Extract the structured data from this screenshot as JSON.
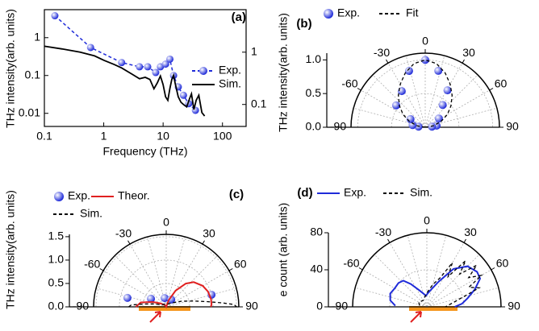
{
  "chart_data": [
    {
      "type": "line",
      "panel_label": "(a)",
      "xlabel": "Frequency (THz)",
      "ylabel": "THz intensity(arb. units)",
      "log_x": true,
      "log_y": true,
      "xlim": [
        0.1,
        250
      ],
      "xticks": [
        0.1,
        1,
        10,
        100
      ],
      "ylim": [
        0.0045,
        5.5
      ],
      "yticks": [
        0.01,
        0.1,
        1
      ],
      "yaxis_color": "#1f2bd9",
      "y2lim": [
        0.038,
        6.5
      ],
      "y2ticks": [
        0.1,
        1
      ],
      "series": [
        {
          "name": "Exp.",
          "color": "#1f2bd9",
          "marker": "circle",
          "dash": true,
          "x": [
            0.15,
            0.6,
            2,
            4,
            5.5,
            7.5,
            9,
            11,
            13,
            15,
            18,
            22,
            27,
            35
          ],
          "values": [
            3.8,
            0.55,
            0.22,
            0.17,
            0.17,
            0.12,
            0.17,
            0.2,
            0.27,
            0.1,
            0.05,
            0.03,
            0.018,
            0.012
          ]
        },
        {
          "name": "Sim.",
          "color": "#000000",
          "axis": "y2",
          "x": [
            0.1,
            0.2,
            0.4,
            0.7,
            1,
            1.5,
            2,
            3,
            4,
            5,
            6,
            7,
            8,
            9,
            10,
            11,
            12,
            13,
            14,
            15,
            16,
            18,
            20,
            22,
            25,
            28,
            30,
            33,
            36,
            40,
            45,
            50
          ],
          "values": [
            1.3,
            1.15,
            1.0,
            0.85,
            0.7,
            0.58,
            0.5,
            0.38,
            0.31,
            0.33,
            0.3,
            0.2,
            0.26,
            0.35,
            0.24,
            0.14,
            0.12,
            0.2,
            0.3,
            0.36,
            0.25,
            0.14,
            0.11,
            0.1,
            0.09,
            0.13,
            0.16,
            0.08,
            0.12,
            0.15,
            0.07,
            0.06
          ]
        }
      ]
    },
    {
      "type": "polar",
      "panel_label": "(b)",
      "ylabel": "THz intensity(arb. units)",
      "rlim": [
        0,
        1.1
      ],
      "rticks": [
        {
          "value": 0,
          "label": "0.0"
        },
        0.5,
        {
          "value": 1,
          "label": "1.0"
        }
      ],
      "thetaticks": [
        -90,
        -60,
        -30,
        0,
        30,
        60,
        90
      ],
      "series": [
        {
          "name": "Exp.",
          "color": "#1f2bd9",
          "marker": "circle",
          "x": [
            -85,
            -80,
            -61,
            -53,
            -33,
            -16,
            0,
            13,
            31,
            38,
            57,
            82,
            85
          ],
          "values": [
            0.1,
            0.19,
            0.25,
            0.54,
            0.64,
            0.87,
            1.0,
            0.86,
            0.64,
            0.42,
            0.24,
            0.17,
            0.1
          ]
        },
        {
          "name": "Fit",
          "color": "#000000",
          "dash": true,
          "x": [
            -90,
            -80,
            -70,
            -60,
            -50,
            -40,
            -30,
            -20,
            -10,
            0,
            10,
            20,
            30,
            40,
            50,
            60,
            70,
            80,
            90
          ],
          "values": [
            0,
            0.12,
            0.25,
            0.38,
            0.5,
            0.62,
            0.74,
            0.86,
            0.96,
            1.0,
            0.96,
            0.86,
            0.74,
            0.62,
            0.5,
            0.38,
            0.25,
            0.12,
            0
          ]
        }
      ]
    },
    {
      "type": "polar",
      "panel_label": "(c)",
      "ylabel": "THz intensity(arb. units)",
      "rlim": [
        0,
        1.55
      ],
      "rticks": [
        {
          "value": 0,
          "label": "0.0"
        },
        0.5,
        {
          "value": 1,
          "label": "1.0"
        },
        1.5
      ],
      "thetaticks": [
        -90,
        -60,
        -30,
        0,
        30,
        60,
        90
      ],
      "series": [
        {
          "name": "Exp.",
          "color": "#1f2bd9",
          "marker": "circle",
          "x": [
            -77,
            -62,
            -10,
            34,
            75
          ],
          "values": [
            0.85,
            0.37,
            0.19,
            0.19,
            1.0
          ]
        },
        {
          "name": "Theor.",
          "color": "#e02020",
          "x": [
            -90,
            -80,
            -70,
            -60,
            -45,
            -30,
            0,
            20,
            30,
            40,
            48,
            60,
            70,
            80,
            87,
            90
          ],
          "values": [
            0.65,
            0.55,
            0.3,
            0.15,
            0.06,
            0.03,
            0,
            0.15,
            0.4,
            0.65,
            0.79,
            0.9,
            0.95,
            0.97,
            0.97,
            0.95
          ]
        },
        {
          "name": "Sim.",
          "color": "#000000",
          "dash": true,
          "x": [
            -90,
            -87,
            -83,
            -78,
            -70,
            -50,
            0,
            50,
            70,
            78,
            83,
            86,
            88,
            90
          ],
          "values": [
            0.8,
            0.75,
            0.5,
            0.3,
            0.15,
            0.08,
            0.05,
            0.12,
            0.35,
            0.6,
            0.9,
            1.2,
            1.45,
            1.5
          ]
        }
      ]
    },
    {
      "type": "polar",
      "panel_label": "(d)",
      "ylabel": "e count (arb. units)",
      "rlim": [
        0,
        80
      ],
      "rticks": [
        0,
        40,
        80
      ],
      "thetaticks": [
        -90,
        -60,
        -30,
        0,
        30,
        60,
        90
      ],
      "series": [
        {
          "name": "Exp.",
          "color": "#1f2bd9",
          "x": [
            -88,
            -80,
            -70,
            -60,
            -50,
            -42,
            -35,
            -25,
            -15,
            -5,
            5,
            15,
            25,
            35,
            45,
            55,
            62,
            70,
            78,
            85,
            90
          ],
          "values": [
            34,
            40,
            42,
            40,
            40,
            38,
            30,
            20,
            15,
            12,
            15,
            20,
            30,
            50,
            62,
            66,
            65,
            55,
            45,
            38,
            30
          ]
        },
        {
          "name": "Sim.",
          "color": "#000000",
          "dash": true,
          "x": [
            -80,
            -60,
            -30,
            0,
            15,
            25,
            30,
            35,
            40,
            45,
            50,
            55,
            60,
            65,
            70,
            75,
            80,
            90
          ],
          "values": [
            8,
            10,
            8,
            15,
            25,
            35,
            55,
            40,
            65,
            50,
            70,
            55,
            68,
            50,
            60,
            40,
            30,
            20
          ]
        }
      ]
    }
  ]
}
